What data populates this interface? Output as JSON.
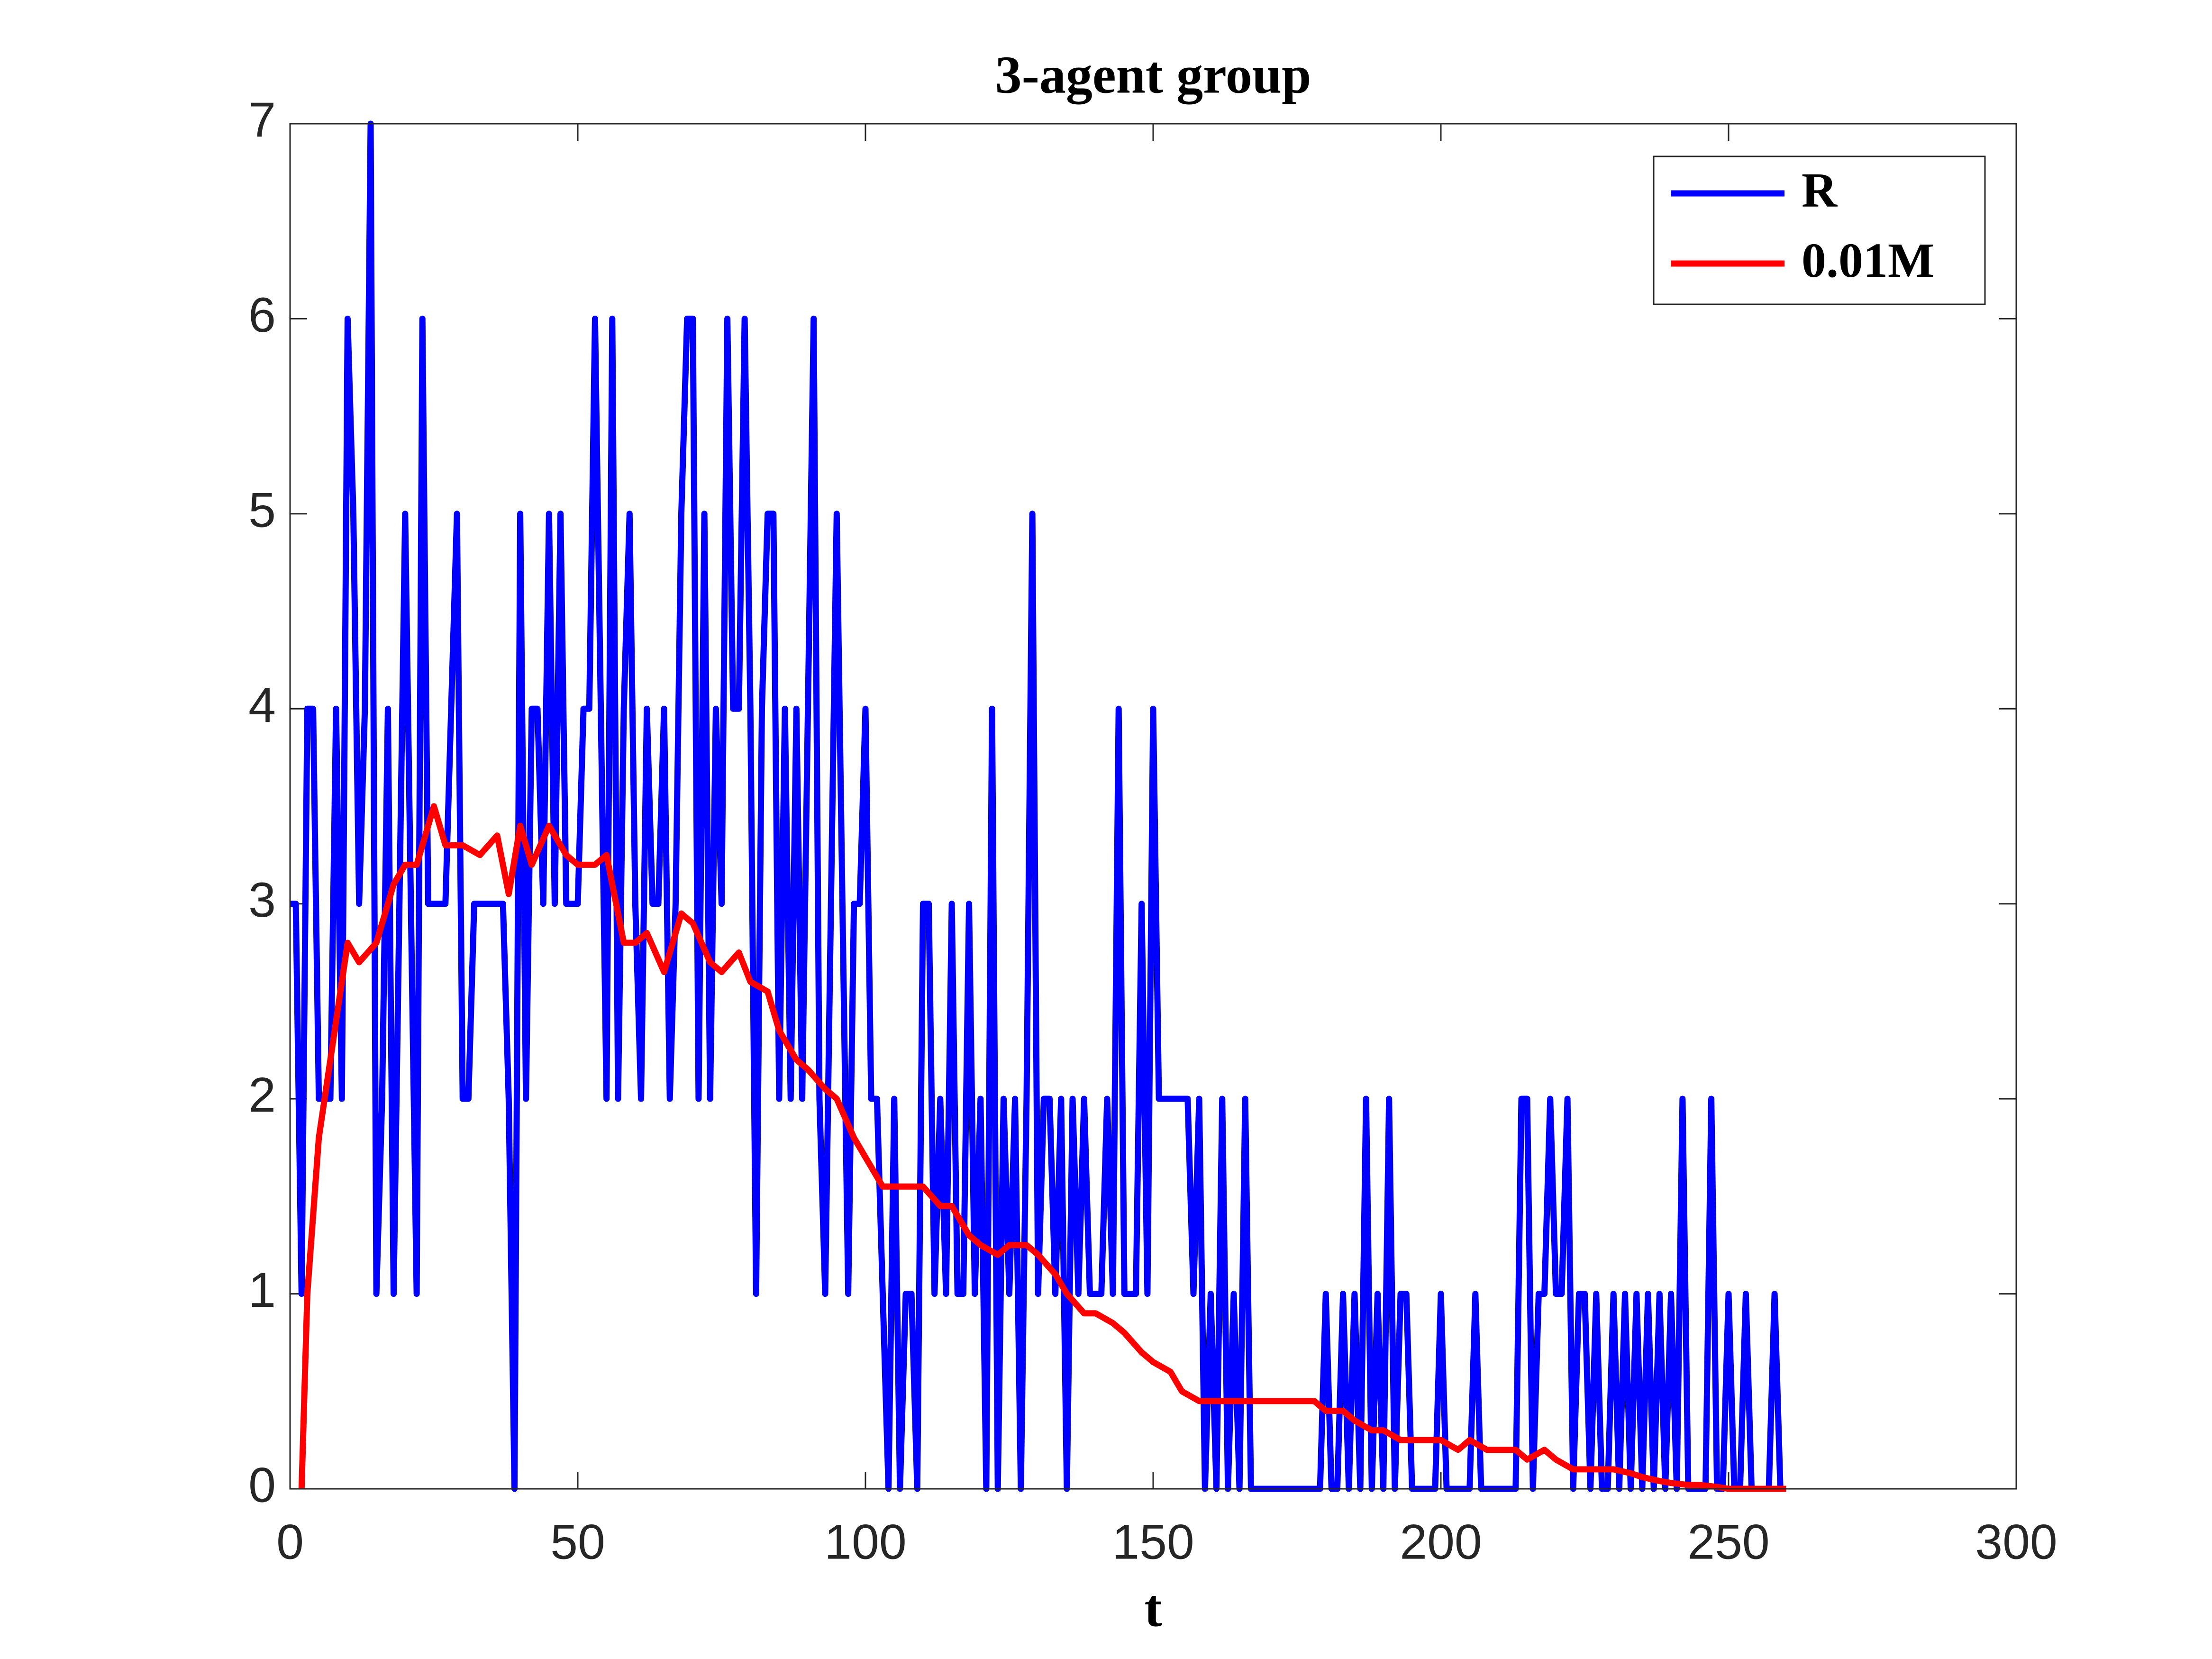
{
  "chart_data": {
    "type": "line",
    "title": "3-agent group",
    "xlabel": "t",
    "xlim": [
      0,
      300
    ],
    "xticks": [
      0,
      50,
      100,
      150,
      200,
      250,
      300
    ],
    "ylim": [
      0,
      7
    ],
    "yticks": [
      0,
      1,
      2,
      3,
      4,
      5,
      6,
      7
    ],
    "grid": false,
    "legend": "upper right",
    "series": [
      {
        "name": "R",
        "color": "#0000ff",
        "x": [
          0,
          1,
          2,
          3,
          4,
          5,
          6,
          7,
          8,
          9,
          10,
          11,
          12,
          13,
          14,
          15,
          16,
          17,
          18,
          19,
          20,
          21,
          22,
          23,
          24,
          25,
          26,
          27,
          28,
          29,
          30,
          31,
          32,
          33,
          34,
          35,
          36,
          37,
          38,
          39,
          40,
          41,
          42,
          43,
          44,
          45,
          46,
          47,
          48,
          49,
          50,
          51,
          52,
          53,
          54,
          55,
          56,
          57,
          58,
          59,
          60,
          61,
          62,
          63,
          64,
          65,
          66,
          67,
          68,
          69,
          70,
          71,
          72,
          73,
          74,
          75,
          76,
          77,
          78,
          79,
          80,
          81,
          82,
          83,
          84,
          85,
          86,
          87,
          88,
          89,
          90,
          91,
          92,
          93,
          94,
          95,
          96,
          97,
          98,
          99,
          100,
          101,
          102,
          103,
          104,
          105,
          106,
          107,
          108,
          109,
          110,
          111,
          112,
          113,
          114,
          115,
          116,
          117,
          118,
          119,
          120,
          121,
          122,
          123,
          124,
          125,
          126,
          127,
          128,
          129,
          130,
          131,
          132,
          133,
          134,
          135,
          136,
          137,
          138,
          139,
          140,
          141,
          142,
          143,
          144,
          145,
          146,
          147,
          148,
          149,
          150,
          151,
          152,
          153,
          154,
          155,
          156,
          157,
          158,
          159,
          160,
          161,
          162,
          163,
          164,
          165,
          166,
          167,
          168,
          169,
          170,
          171,
          172,
          173,
          174,
          175,
          176,
          177,
          178,
          179,
          180,
          181,
          182,
          183,
          184,
          185,
          186,
          187,
          188,
          189,
          190,
          191,
          192,
          193,
          194,
          195,
          196,
          197,
          198,
          199,
          200,
          201,
          202,
          203,
          204,
          205,
          206,
          207,
          208,
          209,
          210,
          211,
          212,
          213,
          214,
          215,
          216,
          217,
          218,
          219,
          220,
          221,
          222,
          223,
          224,
          225,
          226,
          227,
          228,
          229,
          230,
          231,
          232,
          233,
          234,
          235,
          236,
          237,
          238,
          239,
          240,
          241,
          242,
          243,
          244,
          245,
          246,
          247,
          248,
          249,
          250,
          251,
          252,
          253,
          254,
          255,
          256,
          257,
          258,
          259,
          260
        ],
        "values": [
          3,
          3,
          1,
          4,
          4,
          2,
          2,
          2,
          4,
          2,
          6,
          5,
          3,
          4,
          7,
          1,
          2,
          4,
          1,
          3,
          5,
          3,
          1,
          6,
          3,
          3,
          3,
          3,
          4,
          5,
          2,
          2,
          3,
          3,
          3,
          3,
          3,
          3,
          2,
          0,
          5,
          2,
          4,
          4,
          3,
          5,
          3,
          5,
          3,
          3,
          3,
          4,
          4,
          6,
          4,
          2,
          6,
          2,
          4,
          5,
          3,
          2,
          4,
          3,
          3,
          4,
          2,
          3,
          5,
          6,
          6,
          2,
          5,
          2,
          4,
          3,
          6,
          4,
          4,
          6,
          4,
          1,
          4,
          5,
          5,
          2,
          4,
          2,
          4,
          2,
          4,
          6,
          2,
          1,
          3,
          5,
          3,
          1,
          3,
          3,
          4,
          2,
          2,
          1,
          0,
          2,
          0,
          1,
          1,
          0,
          3,
          3,
          1,
          2,
          1,
          3,
          1,
          1,
          3,
          1,
          2,
          0,
          4,
          0,
          2,
          1,
          2,
          0,
          2,
          5,
          1,
          2,
          2,
          1,
          2,
          0,
          2,
          1,
          2,
          1,
          1,
          1,
          2,
          1,
          4,
          1,
          1,
          1,
          3,
          1,
          4,
          2,
          2,
          2,
          2,
          2,
          2,
          1,
          2,
          0,
          1,
          0,
          2,
          0,
          1,
          0,
          2,
          0,
          0,
          0,
          0,
          0,
          0,
          0,
          0,
          0,
          0,
          0,
          0,
          0,
          1,
          0,
          0,
          1,
          0,
          1,
          0,
          2,
          0,
          1,
          0,
          2,
          0,
          1,
          1,
          0,
          0,
          0,
          0,
          0,
          1,
          0,
          0,
          0,
          0,
          0,
          1,
          0,
          0,
          0,
          0,
          0,
          0,
          0,
          2,
          2,
          0,
          1,
          1,
          2,
          1,
          1,
          2,
          0,
          1,
          1,
          0,
          1,
          0,
          0,
          1,
          0,
          1,
          0,
          1,
          0,
          1,
          0,
          1,
          0,
          1,
          0,
          2,
          0,
          0,
          0,
          0,
          2,
          0,
          0,
          1,
          0,
          0,
          1,
          0,
          0,
          0,
          0,
          1,
          0,
          0
        ]
      },
      {
        "name": "0.01M",
        "color": "#ff0000",
        "x": [
          2,
          3,
          5,
          8,
          10,
          12,
          15,
          18,
          20,
          22,
          25,
          27,
          30,
          33,
          36,
          38,
          40,
          42,
          45,
          48,
          50,
          53,
          55,
          58,
          60,
          62,
          65,
          68,
          70,
          73,
          75,
          78,
          80,
          83,
          85,
          88,
          90,
          93,
          95,
          98,
          100,
          103,
          105,
          108,
          110,
          113,
          115,
          118,
          120,
          123,
          125,
          128,
          130,
          133,
          135,
          138,
          140,
          143,
          145,
          148,
          150,
          153,
          155,
          158,
          160,
          163,
          165,
          168,
          170,
          173,
          175,
          178,
          180,
          183,
          185,
          188,
          190,
          193,
          195,
          198,
          200,
          203,
          205,
          208,
          210,
          213,
          215,
          218,
          220,
          223,
          225,
          228,
          230,
          233,
          235,
          238,
          240,
          243,
          245,
          248,
          250,
          253,
          255,
          258,
          260
        ],
        "values": [
          0,
          1,
          1.8,
          2.4,
          2.8,
          2.7,
          2.8,
          3.1,
          3.2,
          3.2,
          3.5,
          3.3,
          3.3,
          3.25,
          3.35,
          3.05,
          3.4,
          3.2,
          3.4,
          3.25,
          3.2,
          3.2,
          3.25,
          2.8,
          2.8,
          2.85,
          2.65,
          2.95,
          2.9,
          2.7,
          2.65,
          2.75,
          2.6,
          2.55,
          2.35,
          2.2,
          2.15,
          2.05,
          2.0,
          1.8,
          1.7,
          1.55,
          1.55,
          1.55,
          1.55,
          1.45,
          1.45,
          1.3,
          1.25,
          1.2,
          1.25,
          1.25,
          1.2,
          1.1,
          1.0,
          0.9,
          0.9,
          0.85,
          0.8,
          0.7,
          0.65,
          0.6,
          0.5,
          0.45,
          0.45,
          0.45,
          0.45,
          0.45,
          0.45,
          0.45,
          0.45,
          0.45,
          0.4,
          0.4,
          0.35,
          0.3,
          0.3,
          0.25,
          0.25,
          0.25,
          0.25,
          0.2,
          0.25,
          0.2,
          0.2,
          0.2,
          0.15,
          0.2,
          0.15,
          0.1,
          0.1,
          0.1,
          0.1,
          0.08,
          0.06,
          0.04,
          0.03,
          0.02,
          0.02,
          0.01,
          0,
          0,
          0,
          0,
          0
        ]
      }
    ]
  }
}
